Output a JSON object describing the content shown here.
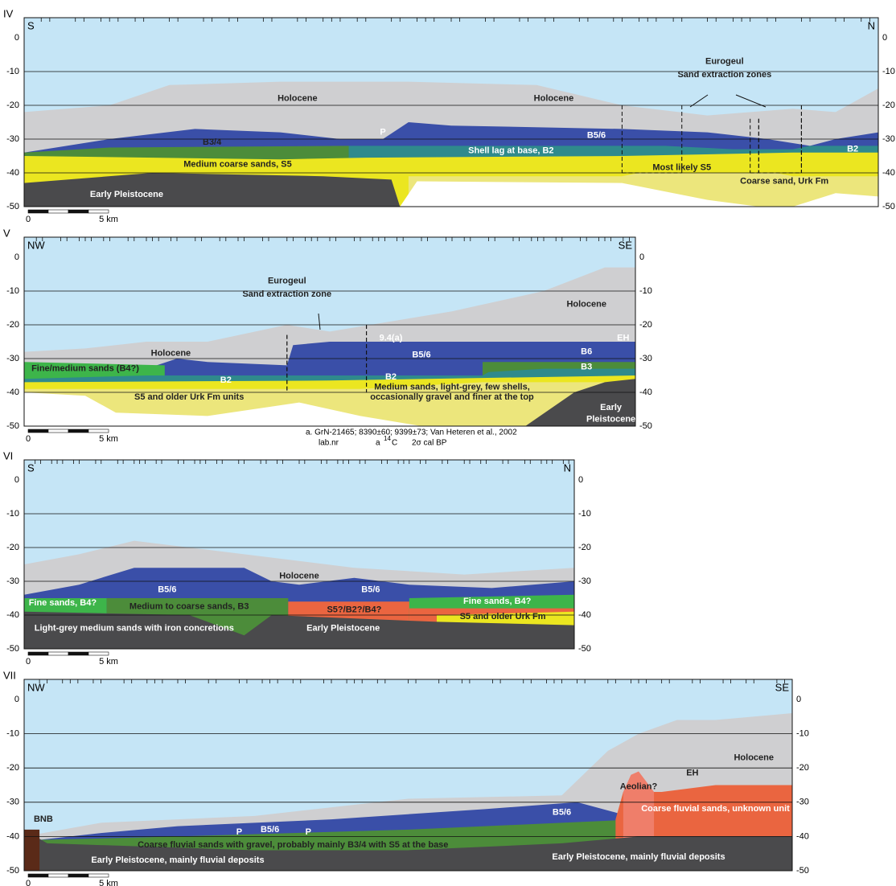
{
  "panels": [
    {
      "id": "IV",
      "left": "S",
      "right": "N",
      "depths": [
        0,
        -10,
        -20,
        -30,
        -40,
        -50
      ],
      "scale": [
        "0",
        "5 km"
      ],
      "labels": [
        "Holocene",
        "Holocene",
        "Eurogeul",
        "Sand extraction zones",
        "B3/4",
        "P",
        "B5/6",
        "Shell lag at base, B2",
        "B2",
        "Medium coarse sands, S5",
        "Most likely S5",
        "Coarse sand, Urk Fm",
        "Early Pleistocene"
      ]
    },
    {
      "id": "V",
      "left": "NW",
      "right": "SE",
      "depths": [
        0,
        -10,
        -20,
        -30,
        -40,
        -50
      ],
      "scale": [
        "0",
        "5 km"
      ],
      "labels": [
        "Eurogeul",
        "Sand extraction zone",
        "Holocene",
        "Holocene",
        "9.4(a)",
        "EH",
        "B5/6",
        "B6",
        "Fine/medium sands (B4?)",
        "B2",
        "B2",
        "B3",
        "S5 and older Urk Fm units",
        "Medium sands, light-grey, few shells,",
        "occasionally gravel and finer at the top",
        "Early",
        "Pleistocene"
      ],
      "footnote": {
        "line1": "a. GrN-21465; 8390±60; 9399±73; Van Heteren et al., 2002",
        "labnr": "lab.nr",
        "a": "a",
        "sup": "14",
        "c": "C",
        "cal": "2σ cal BP"
      }
    },
    {
      "id": "VI",
      "left": "S",
      "right": "N",
      "depths": [
        0,
        -10,
        -20,
        -30,
        -40,
        -50
      ],
      "scale": [
        "0",
        "5 km"
      ],
      "labels": [
        "Holocene",
        "B5/6",
        "B5/6",
        "Fine sands, B4?",
        "Medium to coarse sands, B3",
        "S5?/B2?/B4?",
        "Fine sands, B4?",
        "S5 and older Urk Fm",
        "Light-grey medium sands with iron concretions",
        "Early Pleistocene"
      ]
    },
    {
      "id": "VII",
      "left": "NW",
      "right": "SE",
      "depths": [
        0,
        -10,
        -20,
        -30,
        -40,
        -50
      ],
      "scale": [
        "0",
        "5 km"
      ],
      "labels": [
        "Holocene",
        "EH",
        "Aeolian?",
        "Coarse fluvial sands, unknown unit",
        "B5/6",
        "P",
        "B5/6",
        "P",
        "BNB",
        "Coarse fluvial sands with gravel, probably mainly B3/4 with S5 at the base",
        "Early Pleistocene, mainly fluvial deposits",
        "Early Pleistocene, mainly fluvial deposits"
      ]
    }
  ]
}
